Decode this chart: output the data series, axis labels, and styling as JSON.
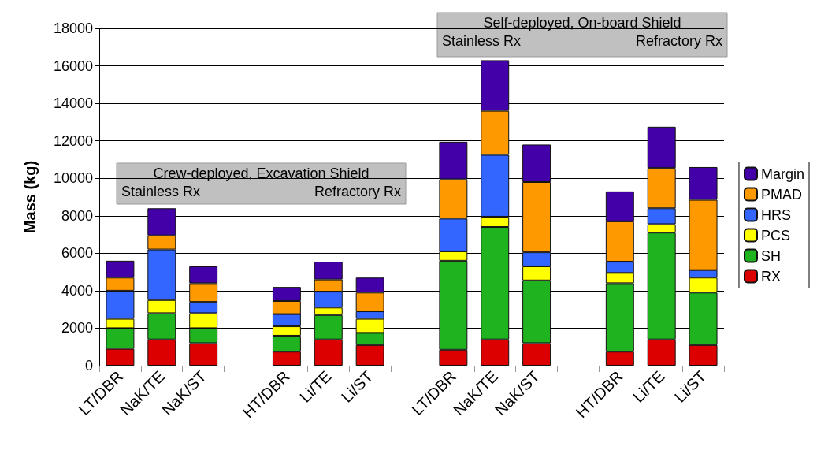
{
  "chart_data": {
    "type": "bar",
    "stacked": true,
    "ylabel": "Mass (kg)",
    "categories": [
      "LT/DBR",
      "NaK/TE",
      "NaK/ST",
      null,
      "HT/DBR",
      "Li/TE",
      "Li/ST",
      null,
      "LT/DBR",
      "NaK/TE",
      "NaK/ST",
      null,
      "HT/DBR",
      "Li/TE",
      "Li/ST"
    ],
    "series": [
      {
        "name": "RX",
        "color": "#dd0000",
        "values": [
          900,
          1400,
          1200,
          null,
          750,
          1400,
          1100,
          null,
          850,
          1400,
          1200,
          null,
          750,
          1400,
          1100
        ]
      },
      {
        "name": "SH",
        "color": "#1fb31f",
        "values": [
          1100,
          1400,
          800,
          null,
          850,
          1300,
          650,
          null,
          4750,
          6000,
          3350,
          null,
          3650,
          5700,
          2800
        ]
      },
      {
        "name": "PCS",
        "color": "#ffff00",
        "values": [
          500,
          700,
          800,
          null,
          500,
          400,
          750,
          null,
          500,
          550,
          750,
          null,
          550,
          450,
          800
        ]
      },
      {
        "name": "HRS",
        "color": "#3366ff",
        "values": [
          1500,
          2700,
          600,
          null,
          650,
          850,
          400,
          null,
          1750,
          3300,
          750,
          null,
          600,
          850,
          400
        ]
      },
      {
        "name": "PMAD",
        "color": "#ff9900",
        "values": [
          700,
          750,
          1000,
          null,
          700,
          650,
          1000,
          null,
          2100,
          2350,
          3750,
          null,
          2150,
          2150,
          3750
        ]
      },
      {
        "name": "Margin",
        "color": "#4400a8",
        "values": [
          900,
          1450,
          900,
          null,
          750,
          950,
          800,
          null,
          2000,
          2700,
          2000,
          null,
          1600,
          2200,
          1750
        ]
      }
    ],
    "ylim": [
      0,
      18000
    ],
    "yticks": [
      0,
      2000,
      4000,
      6000,
      8000,
      10000,
      12000,
      14000,
      16000,
      18000
    ],
    "grid": "y",
    "legend": "right",
    "annotations": [
      "Crew-deployed, Excavation Shield",
      "Stainless Rx",
      "Refractory Rx",
      "Self-deployed, On-board Shield",
      "Stainless Rx",
      "Refractory Rx"
    ]
  }
}
